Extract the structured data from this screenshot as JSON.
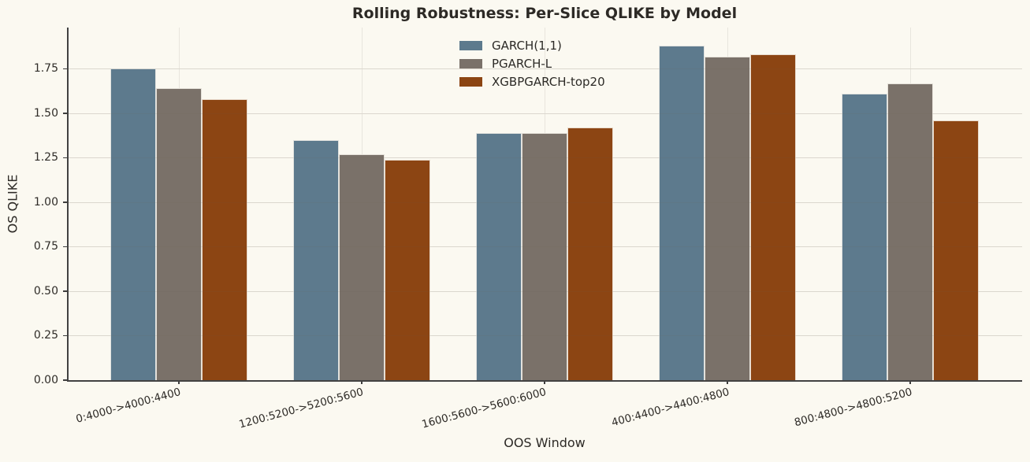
{
  "chart_data": {
    "type": "bar",
    "title": "Rolling Robustness: Per-Slice QLIKE by Model",
    "xlabel": "OOS Window",
    "ylabel": "OS QLIKE",
    "categories": [
      "0:4000->4000:4400",
      "1200:5200->5200:5600",
      "1600:5600->5600:6000",
      "400:4400->4400:4800",
      "800:4800->4800:5200"
    ],
    "series": [
      {
        "name": "GARCH(1,1)",
        "color": "#5d7a8d",
        "values": [
          1.75,
          1.35,
          1.39,
          1.88,
          1.61
        ]
      },
      {
        "name": "PGARCH-L",
        "color": "#7a7169",
        "values": [
          1.64,
          1.27,
          1.39,
          1.82,
          1.67
        ]
      },
      {
        "name": "XGBPGARCH-top20",
        "color": "#8c4513",
        "values": [
          1.58,
          1.24,
          1.42,
          1.83,
          1.46
        ]
      }
    ],
    "yticks": [
      "0.00",
      "0.25",
      "0.50",
      "0.75",
      "1.00",
      "1.25",
      "1.50",
      "1.75"
    ],
    "ytick_values": [
      0,
      0.25,
      0.5,
      0.75,
      1.0,
      1.25,
      1.5,
      1.75
    ],
    "ylim": [
      0,
      1.98
    ],
    "grid": true,
    "legend_position": "upper center",
    "background_color": "#fbf9f1"
  }
}
